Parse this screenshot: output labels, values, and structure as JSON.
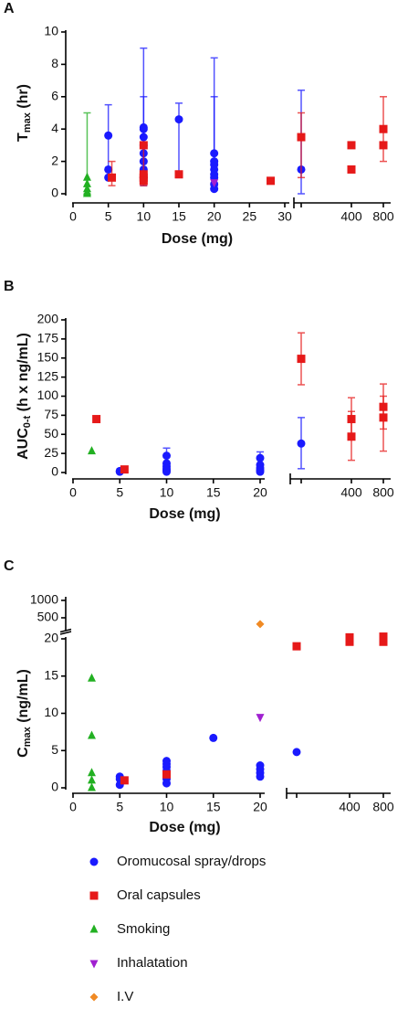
{
  "chart_data": [
    {
      "type": "scatter",
      "title": "A",
      "ylabel": "T",
      "ylabel_sub": "max",
      "ylabel_unit": " (hr)",
      "xlabel": "Dose (mg)",
      "xlim": [
        0,
        30
      ],
      "xticks": [
        0,
        5,
        10,
        15,
        20,
        25,
        30
      ],
      "right_categories": [
        null,
        "400",
        "800"
      ],
      "ylim": [
        0,
        10
      ],
      "yticks": [
        0,
        2,
        4,
        6,
        8,
        10
      ],
      "series": [
        {
          "name": "Oromucosal spray/drops",
          "color": "#1a1aff",
          "marker": "circle",
          "x": [
            5,
            5,
            5,
            10,
            10,
            10,
            10,
            10,
            10,
            10,
            10,
            15,
            20,
            20,
            20,
            20,
            20,
            20,
            20,
            20
          ],
          "values": [
            1.5,
            3.6,
            1.0,
            4.1,
            3.5,
            3.0,
            2.5,
            2.0,
            1.5,
            1.0,
            4.0,
            4.6,
            2.5,
            2.0,
            1.8,
            1.5,
            1.2,
            1.0,
            0.6,
            0.3
          ],
          "errors": [
            [
              1,
              5.5
            ],
            null,
            null,
            [
              0.5,
              9
            ],
            null,
            null,
            null,
            null,
            null,
            null,
            [
              1,
              6
            ],
            [
              1,
              5.6
            ],
            [
              0.5,
              8.4
            ],
            [
              0.5,
              6
            ],
            null,
            null,
            null,
            null,
            null,
            null
          ],
          "right_slot": [
            0
          ],
          "right_values": [
            1.5
          ],
          "right_errors": [
            [
              0,
              6.4
            ]
          ]
        },
        {
          "name": "Oral capsules",
          "color": "#e61919",
          "marker": "square",
          "x": [
            5.5,
            10,
            10,
            10,
            10,
            15,
            28
          ],
          "values": [
            1,
            3,
            1.2,
            1,
            0.8,
            1.2,
            0.8
          ],
          "errors": [
            [
              0.5,
              2
            ],
            [
              0.5,
              3
            ],
            null,
            null,
            null,
            null,
            null
          ],
          "right_slot": [
            0,
            1,
            1,
            2,
            2
          ],
          "right_values": [
            3.5,
            3,
            1.5,
            4,
            3
          ],
          "right_errors": [
            [
              1,
              5
            ],
            null,
            null,
            [
              2,
              6
            ],
            null
          ]
        },
        {
          "name": "Smoking",
          "color": "#22b022",
          "marker": "triangle",
          "x": [
            2,
            2,
            2,
            2,
            2
          ],
          "values": [
            1,
            0.6,
            0.3,
            0.1,
            0.0
          ],
          "errors": [
            [
              0,
              5
            ],
            null,
            null,
            null,
            null
          ]
        },
        {
          "name": "Inhalatation",
          "color": "#a020d0",
          "marker": "triangle-down",
          "x": [
            20
          ],
          "values": [
            0.7
          ]
        }
      ]
    },
    {
      "type": "scatter",
      "title": "B",
      "ylabel": "AUC",
      "ylabel_sub": "0-t",
      "ylabel_unit": " (h x ng/mL)",
      "xlabel": "Dose (mg)",
      "xlim": [
        0,
        20
      ],
      "xticks": [
        0,
        5,
        10,
        15,
        20
      ],
      "right_categories": [
        null,
        "400",
        "800"
      ],
      "ylim": [
        0,
        200
      ],
      "yticks": [
        0,
        25,
        50,
        75,
        100,
        125,
        150,
        175,
        200
      ],
      "series": [
        {
          "name": "Oromucosal spray/drops",
          "color": "#1a1aff",
          "marker": "circle",
          "x": [
            5,
            5,
            10,
            10,
            10,
            10,
            10,
            10,
            20,
            20,
            20,
            20,
            20
          ],
          "values": [
            2,
            1,
            22,
            12,
            8,
            5,
            3,
            1,
            19,
            10,
            6,
            3,
            1
          ],
          "errors": [
            null,
            null,
            [
              0,
              32
            ],
            null,
            null,
            null,
            null,
            null,
            [
              0,
              27
            ],
            null,
            null,
            null,
            null
          ],
          "right_slot": [
            0
          ],
          "right_values": [
            38
          ],
          "right_errors": [
            [
              5,
              72
            ]
          ]
        },
        {
          "name": "Oral capsules",
          "color": "#e61919",
          "marker": "square",
          "x": [
            2.5,
            5.5
          ],
          "values": [
            70,
            4
          ],
          "right_slot": [
            0,
            1,
            1,
            2,
            2
          ],
          "right_values": [
            149,
            70,
            47,
            86,
            72
          ],
          "right_errors": [
            [
              115,
              183
            ],
            [
              45,
              98
            ],
            [
              16,
              80
            ],
            [
              57,
              116
            ],
            [
              28,
              100
            ]
          ]
        },
        {
          "name": "Smoking",
          "color": "#22b022",
          "marker": "triangle",
          "x": [
            2
          ],
          "values": [
            28
          ]
        }
      ]
    },
    {
      "type": "scatter",
      "title": "C",
      "ylabel": "C",
      "ylabel_sub": "max",
      "ylabel_unit": " (ng/mL)",
      "xlabel": "Dose (mg)",
      "xlim": [
        0,
        20
      ],
      "xticks": [
        0,
        5,
        10,
        15,
        20
      ],
      "right_categories": [
        null,
        "400",
        "800"
      ],
      "ylim": [
        0,
        20
      ],
      "yticks": [
        0,
        5,
        10,
        15,
        20
      ],
      "y2lim": [
        250,
        1050
      ],
      "y2ticks": [
        500,
        1000
      ],
      "series": [
        {
          "name": "Oromucosal spray/drops",
          "color": "#1a1aff",
          "marker": "circle",
          "x": [
            5,
            5,
            5,
            10,
            10,
            10,
            10,
            10,
            10,
            10,
            15,
            20,
            20,
            20,
            20
          ],
          "values": [
            1.5,
            1.2,
            0.4,
            3.6,
            3.2,
            2.8,
            2.3,
            1.8,
            1.2,
            0.6,
            6.7,
            3.0,
            2.5,
            2.0,
            1.5
          ],
          "right_slot": [
            0
          ],
          "right_values": [
            4.8
          ]
        },
        {
          "name": "Oral capsules",
          "color": "#e61919",
          "marker": "square",
          "x": [
            5.5,
            10
          ],
          "values": [
            1,
            1.8
          ],
          "right_slot": [
            0,
            1,
            1,
            2,
            2
          ],
          "right_values": [
            19,
            19.6,
            20.2,
            19.6,
            20.3
          ]
        },
        {
          "name": "Smoking",
          "color": "#22b022",
          "marker": "triangle",
          "x": [
            2,
            2,
            2,
            2,
            2
          ],
          "values": [
            14.7,
            7,
            2,
            1,
            0
          ]
        },
        {
          "name": "Inhalatation",
          "color": "#a020d0",
          "marker": "triangle-down",
          "x": [
            20
          ],
          "values": [
            9.5
          ]
        },
        {
          "name": "I.V",
          "color": "#f08a24",
          "marker": "diamond",
          "axis": "y2",
          "x": [
            20
          ],
          "values": [
            320
          ]
        }
      ]
    }
  ]
}
